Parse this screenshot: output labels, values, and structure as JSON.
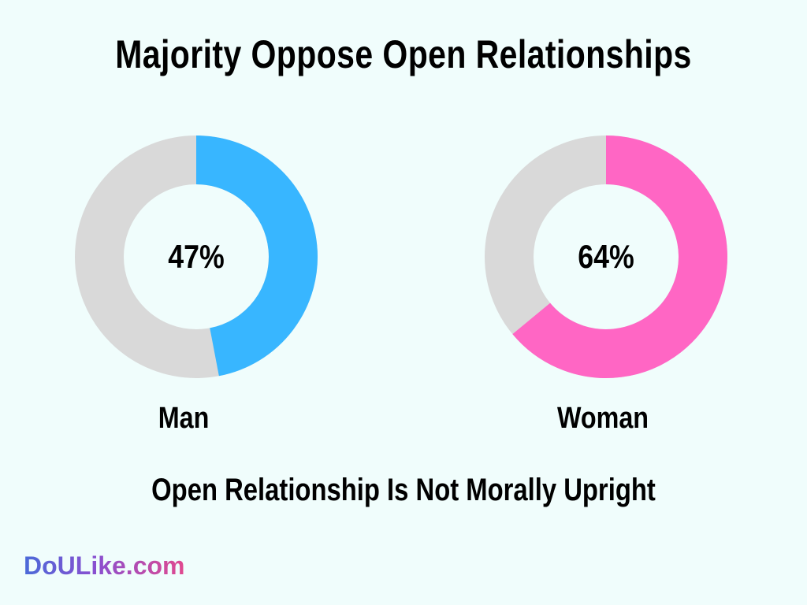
{
  "title": "Majority Oppose Open Relationships",
  "subtitle": "Open Relationship Is Not Morally Upright",
  "brand": "DoULike.com",
  "colors": {
    "background": "#f0fdfc",
    "remainder": "#d9d9d9",
    "man": "#38b6ff",
    "woman": "#ff66c4"
  },
  "chart_data": [
    {
      "type": "pie",
      "label": "Man",
      "value": 47,
      "display": "47%",
      "color": "#38b6ff",
      "remainder_color": "#d9d9d9"
    },
    {
      "type": "pie",
      "label": "Woman",
      "value": 64,
      "display": "64%",
      "color": "#ff66c4",
      "remainder_color": "#d9d9d9"
    }
  ]
}
